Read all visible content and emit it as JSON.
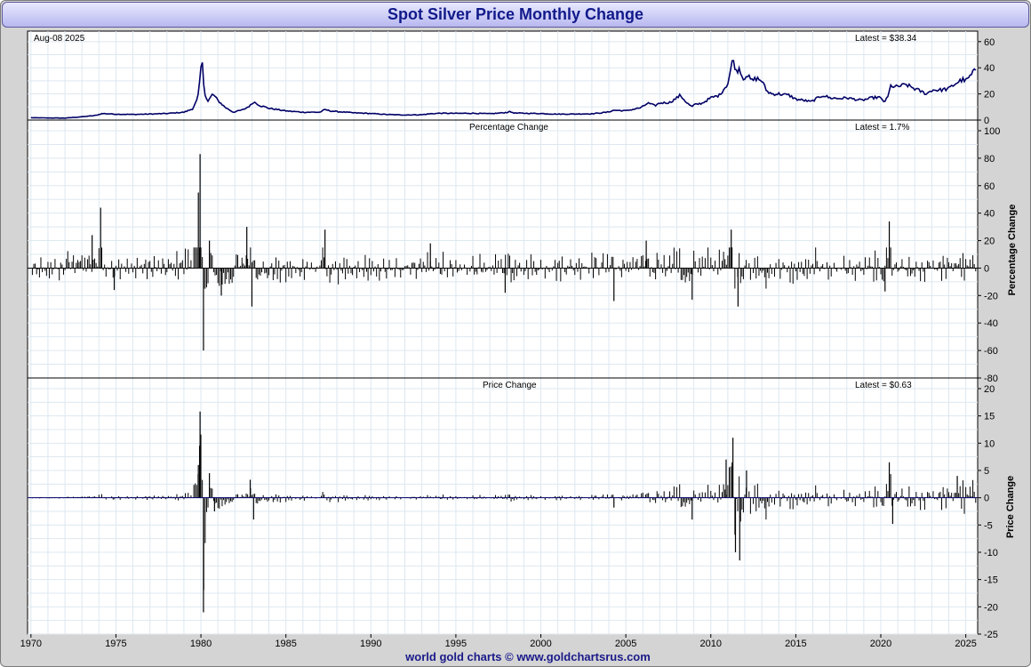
{
  "title": "Spot Silver Price Monthly Change",
  "footer": "world gold charts © www.goldchartsrus.com",
  "colors": {
    "price_line": "#000066",
    "bars": "#000000",
    "grid": "#dde8f0",
    "title_text": "#111a8a"
  },
  "chart_data": [
    {
      "type": "line",
      "panel": "price",
      "date_label": "Aug-08  2025",
      "latest_label": "Latest = $38.34",
      "ylim": [
        0,
        66
      ],
      "yticks": [
        0,
        20,
        40,
        60
      ],
      "xlim": [
        1969.8,
        2025.7
      ],
      "series": [
        {
          "x": [
            1970.0,
            1971.0,
            1972.0,
            1973.0,
            1973.8,
            1974.2,
            1975.0,
            1976.0,
            1977.0,
            1978.0,
            1979.0,
            1979.5,
            1979.8,
            1979.9,
            1980.05,
            1980.2,
            1980.4,
            1980.7,
            1981.0,
            1981.4,
            1981.9,
            1982.5,
            1982.9,
            1983.1,
            1983.5,
            1984.0,
            1985.0,
            1986.0,
            1987.0,
            1987.3,
            1987.6,
            1988.0,
            1989.0,
            1990.0,
            1991.0,
            1992.0,
            1993.0,
            1993.5,
            1994.0,
            1995.0,
            1996.0,
            1997.0,
            1998.0,
            1998.1,
            1998.5,
            1999.0,
            2000.0,
            2001.0,
            2002.0,
            2003.0,
            2003.9,
            2004.3,
            2005.0,
            2005.9,
            2006.3,
            2006.7,
            2007.0,
            2007.6,
            2008.0,
            2008.2,
            2008.6,
            2008.9,
            2009.0,
            2009.5,
            2010.0,
            2010.5,
            2011.0,
            2011.3,
            2011.5,
            2011.7,
            2011.9,
            2012.1,
            2012.4,
            2012.7,
            2013.0,
            2013.3,
            2013.6,
            2014.0,
            2014.6,
            2015.0,
            2015.5,
            2015.9,
            2016.3,
            2016.6,
            2017.0,
            2017.5,
            2018.0,
            2018.9,
            2019.0,
            2019.5,
            2019.9,
            2020.2,
            2020.4,
            2020.6,
            2020.8,
            2021.1,
            2021.5,
            2022.0,
            2022.7,
            2023.0,
            2023.5,
            2024.0,
            2024.4,
            2024.8,
            2025.0,
            2025.3,
            2025.6
          ],
          "y": [
            1.8,
            1.6,
            1.5,
            2.5,
            3.5,
            5.0,
            4.5,
            4.3,
            4.6,
            5.0,
            6.0,
            8.5,
            16,
            25,
            48,
            22,
            14,
            20,
            15,
            10,
            6,
            8,
            11,
            14,
            11,
            9,
            7,
            6,
            6,
            8,
            7,
            6.5,
            5.5,
            5,
            4.2,
            3.9,
            4.1,
            4.8,
            5.2,
            5.1,
            5.2,
            4.8,
            5.8,
            6.5,
            5.3,
            5.2,
            5.0,
            4.5,
            4.6,
            4.8,
            6.0,
            7.5,
            7.1,
            9.5,
            13,
            11,
            13,
            13.5,
            17,
            19,
            13,
            10,
            11.5,
            13,
            17,
            19,
            28,
            47,
            37,
            40,
            31,
            35,
            30,
            32,
            30,
            22,
            20,
            20,
            19,
            16,
            15,
            14,
            17,
            19,
            17,
            16.5,
            17,
            15,
            15.5,
            17,
            17.5,
            14,
            17,
            27,
            25,
            26,
            27,
            24,
            20,
            23,
            23,
            24,
            28,
            31,
            30,
            34,
            39
          ]
        }
      ]
    },
    {
      "type": "bar",
      "panel": "percentage",
      "label": "Percentage Change",
      "latest_label": "Latest = 1.7%",
      "ylabel": "Percentage Change",
      "ylim": [
        -80,
        100
      ],
      "yticks": [
        -80,
        -60,
        -40,
        -20,
        0,
        20,
        40,
        60,
        80,
        100
      ],
      "spikes": [
        {
          "x": 1974.1,
          "y": 44
        },
        {
          "x": 1973.6,
          "y": 24
        },
        {
          "x": 1974.9,
          "y": -16
        },
        {
          "x": 1979.85,
          "y": 55
        },
        {
          "x": 1979.95,
          "y": 83
        },
        {
          "x": 1980.15,
          "y": -60
        },
        {
          "x": 1980.5,
          "y": 20
        },
        {
          "x": 1981.2,
          "y": -20
        },
        {
          "x": 1982.7,
          "y": 30
        },
        {
          "x": 1983.0,
          "y": -28
        },
        {
          "x": 1987.3,
          "y": 28
        },
        {
          "x": 1993.5,
          "y": 18
        },
        {
          "x": 2004.3,
          "y": -24
        },
        {
          "x": 2006.2,
          "y": 20
        },
        {
          "x": 2008.9,
          "y": -23
        },
        {
          "x": 2011.2,
          "y": 28
        },
        {
          "x": 2011.6,
          "y": -28
        },
        {
          "x": 2020.5,
          "y": 34
        },
        {
          "x": 2020.25,
          "y": -17
        },
        {
          "x": 1997.9,
          "y": -18
        }
      ]
    },
    {
      "type": "bar",
      "panel": "price_change",
      "label": "Price Change",
      "latest_label": "Latest = $0.63",
      "ylabel": "Price Change",
      "ylim": [
        -25,
        20
      ],
      "yticks": [
        -25,
        -20,
        -15,
        -10,
        -5,
        0,
        5,
        10,
        15,
        20
      ],
      "spikes": [
        {
          "x": 1979.85,
          "y": 6
        },
        {
          "x": 1979.95,
          "y": 15.8
        },
        {
          "x": 1980.15,
          "y": -21
        },
        {
          "x": 1980.5,
          "y": 4.5
        },
        {
          "x": 1980.8,
          "y": -2.5
        },
        {
          "x": 1982.9,
          "y": 3.3
        },
        {
          "x": 1983.1,
          "y": -4
        },
        {
          "x": 2004.3,
          "y": -1.8
        },
        {
          "x": 2008.9,
          "y": -4
        },
        {
          "x": 2010.9,
          "y": 7
        },
        {
          "x": 2011.3,
          "y": 11
        },
        {
          "x": 2011.45,
          "y": -10
        },
        {
          "x": 2011.7,
          "y": -11.5
        },
        {
          "x": 2012.1,
          "y": 5
        },
        {
          "x": 2020.5,
          "y": 6.5
        },
        {
          "x": 2020.7,
          "y": -4.8
        },
        {
          "x": 2024.5,
          "y": 4
        }
      ]
    }
  ],
  "x_axis": {
    "ticks": [
      1970,
      1975,
      1980,
      1985,
      1990,
      1995,
      2000,
      2005,
      2010,
      2015,
      2020,
      2025
    ]
  }
}
